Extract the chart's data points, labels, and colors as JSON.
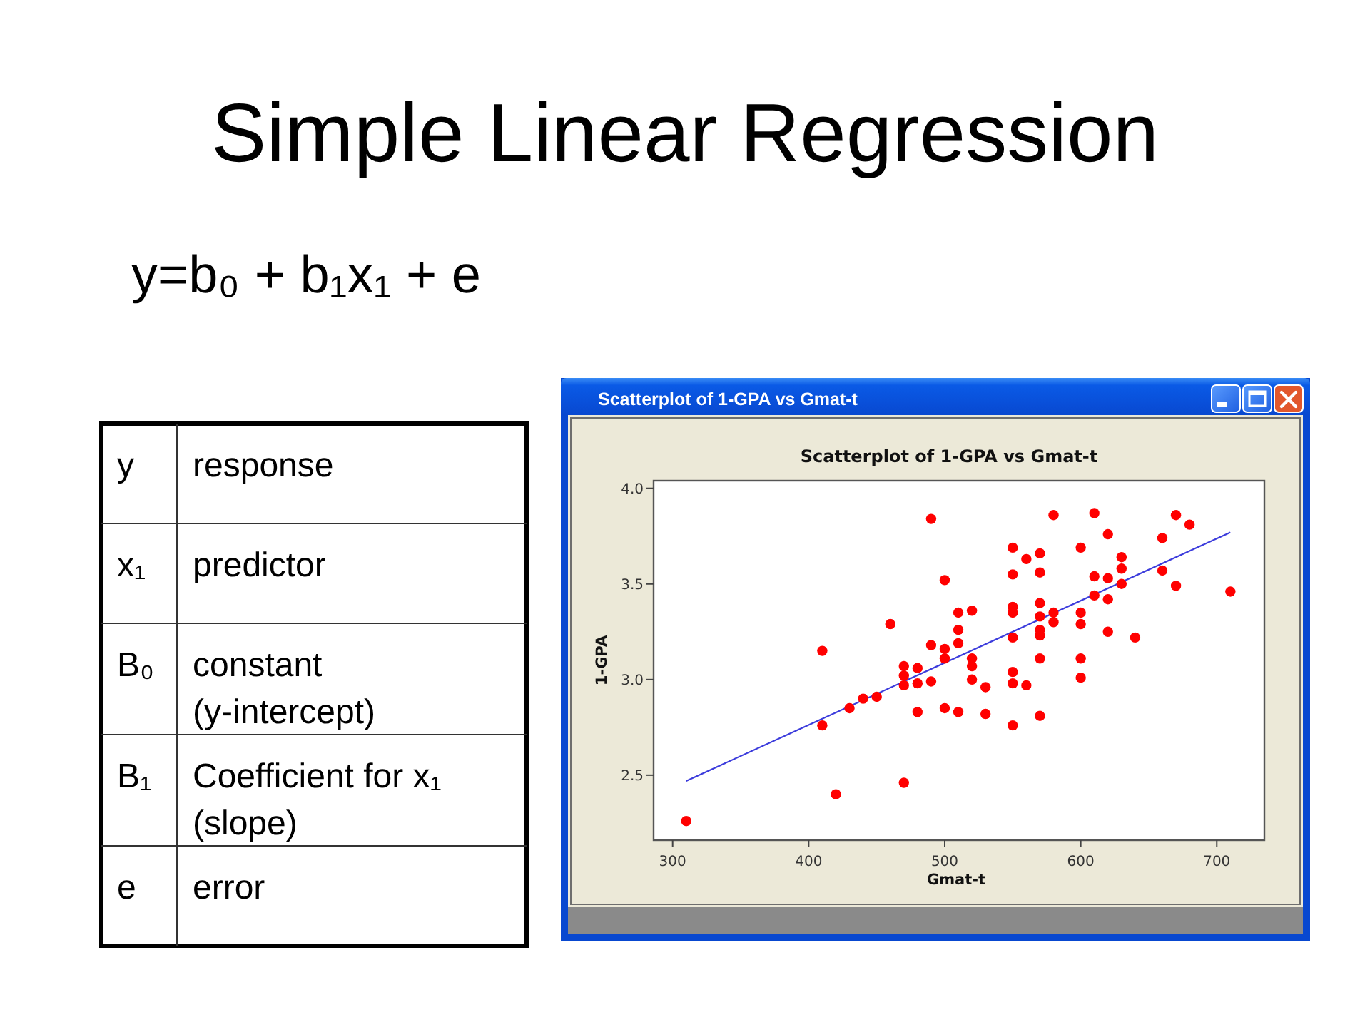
{
  "chart_data": {
    "type": "scatter",
    "title": "Simple Linear Regression",
    "subtitle": "y=b₀ + b₁x₁ + e",
    "xlabel": "Gmat-t",
    "ylabel": "1-GPA",
    "annotations": [
      "Scatterplot of 1-GPA vs Gmat-t",
      "Scatterplot of 1-GPA vs Gmat-t",
      "y",
      "response",
      "x₁",
      "predictor",
      "B₀",
      "constant (y-intercept)",
      "B₁",
      "Coefficient for x₁ (slope)",
      "e",
      "error"
    ],
    "xlim": [
      286,
      735
    ],
    "ylim": [
      2.16,
      4.04
    ],
    "xticks": [
      300,
      400,
      500,
      600,
      700
    ],
    "yticks": [
      2.5,
      {
        "value": 3,
        "label": "3.0"
      },
      3.5,
      {
        "value": 4,
        "label": "4.0"
      }
    ],
    "marker": "circle",
    "series": [
      {
        "type": "line",
        "color": "#3c3cdc",
        "marker": "none",
        "x": [
          310,
          710
        ],
        "values": [
          2.47,
          3.77
        ]
      },
      {
        "color": "#ff0000",
        "x": [
          310,
          410,
          410,
          420,
          430,
          440,
          450,
          460,
          470,
          470,
          470,
          470,
          480,
          480,
          480,
          490,
          490,
          490,
          500,
          500,
          500,
          500,
          510,
          510,
          510,
          510,
          520,
          520,
          520,
          520,
          530,
          530,
          550,
          550,
          550,
          550,
          550,
          550,
          550,
          550,
          560,
          560,
          570,
          570,
          570,
          570,
          570,
          570,
          570,
          570,
          580,
          580,
          580,
          600,
          600,
          600,
          600,
          600,
          610,
          610,
          610,
          620,
          620,
          620,
          620,
          630,
          630,
          630,
          640,
          660,
          660,
          670,
          670,
          680,
          710
        ],
        "values": [
          2.26,
          3.15,
          2.76,
          2.4,
          2.85,
          2.9,
          2.91,
          3.29,
          3.07,
          3.02,
          2.97,
          2.46,
          3.06,
          2.98,
          2.83,
          3.84,
          3.18,
          2.99,
          3.52,
          3.16,
          3.11,
          2.85,
          3.35,
          3.26,
          3.19,
          2.83,
          3.36,
          3.11,
          3.07,
          3.0,
          2.96,
          2.82,
          3.69,
          3.55,
          3.38,
          3.35,
          3.22,
          3.04,
          2.98,
          2.76,
          3.63,
          2.97,
          3.66,
          3.56,
          3.4,
          3.33,
          3.26,
          3.23,
          3.11,
          2.81,
          3.86,
          3.35,
          3.3,
          3.69,
          3.35,
          3.29,
          3.11,
          3.01,
          3.87,
          3.54,
          3.44,
          3.76,
          3.53,
          3.42,
          3.25,
          3.64,
          3.58,
          3.5,
          3.22,
          3.74,
          3.57,
          3.86,
          3.49,
          3.81,
          3.46
        ]
      }
    ]
  }
}
